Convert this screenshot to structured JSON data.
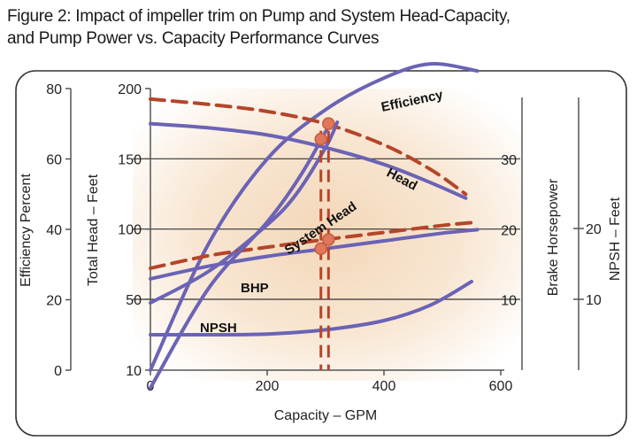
{
  "figure": {
    "title_line1": "Figure 2: Impact of impeller trim on Pump and System Head-Capacity,",
    "title_line2": "and Pump Power vs. Capacity Performance Curves"
  },
  "chart_data": {
    "type": "line",
    "xlabel": "Capacity – GPM",
    "xlim": [
      0,
      600
    ],
    "x_ticks": [
      "0",
      "200",
      "400",
      "600"
    ],
    "axes": {
      "efficiency": {
        "label": "Efficiency Percent",
        "ticks": [
          "80",
          "60",
          "40",
          "20",
          "0"
        ]
      },
      "head": {
        "label": "Total Head – Feet",
        "ticks": [
          "200",
          "150",
          "100",
          "50",
          "10"
        ]
      },
      "bhp": {
        "label": "Brake Horsepower",
        "ticks": [
          "30",
          "20",
          "10"
        ]
      },
      "npsh": {
        "label": "NPSH – Feet",
        "ticks": [
          "20",
          "10"
        ]
      }
    },
    "grid": "horizontal",
    "series": [
      {
        "name": "Efficiency",
        "style": "solid",
        "color": "#6b63b5",
        "points": [
          [
            0,
            0
          ],
          [
            100,
            36
          ],
          [
            200,
            60
          ],
          [
            300,
            74
          ],
          [
            400,
            83
          ],
          [
            480,
            87
          ],
          [
            560,
            85
          ]
        ]
      },
      {
        "name": "Efficiency",
        "style": "dashed",
        "color": "#b5452a",
        "points": [
          [
            0,
            77
          ],
          [
            100,
            75.5
          ],
          [
            200,
            73.5
          ],
          [
            300,
            70
          ],
          [
            400,
            64
          ],
          [
            480,
            57
          ],
          [
            540,
            50
          ]
        ]
      },
      {
        "name": "Head",
        "style": "solid",
        "color": "#6b63b5",
        "points": [
          [
            0,
            175
          ],
          [
            100,
            172
          ],
          [
            200,
            167
          ],
          [
            300,
            158
          ],
          [
            400,
            146
          ],
          [
            480,
            133
          ],
          [
            540,
            122
          ]
        ]
      },
      {
        "name": "System Head",
        "style": "solid",
        "color": "#6b63b5",
        "points": [
          [
            0,
            48
          ],
          [
            100,
            70
          ],
          [
            200,
            103
          ],
          [
            250,
            125
          ],
          [
            300,
            158
          ],
          [
            320,
            176
          ]
        ]
      },
      {
        "name": "BHP",
        "style": "solid",
        "color": "#6b63b5",
        "points": [
          [
            0,
            13
          ],
          [
            100,
            14.8
          ],
          [
            200,
            16.2
          ],
          [
            300,
            17.3
          ],
          [
            400,
            18.4
          ],
          [
            500,
            19.5
          ],
          [
            560,
            20
          ]
        ]
      },
      {
        "name": "BHP",
        "style": "dashed",
        "color": "#b5452a",
        "points": [
          [
            0,
            14.5
          ],
          [
            100,
            16.3
          ],
          [
            200,
            17.5
          ],
          [
            300,
            18.6
          ],
          [
            400,
            19.6
          ],
          [
            500,
            20.6
          ],
          [
            550,
            21
          ]
        ]
      },
      {
        "name": "NPSH",
        "style": "solid",
        "color": "#6b63b5",
        "points": [
          [
            0,
            5
          ],
          [
            100,
            5
          ],
          [
            200,
            5.1
          ],
          [
            300,
            5.7
          ],
          [
            400,
            7
          ],
          [
            480,
            9.2
          ],
          [
            550,
            12.5
          ]
        ]
      },
      {
        "name": "System Head",
        "style": "solid",
        "color": "#6b63b5",
        "points": [
          [
            0,
            0
          ],
          [
            100,
            58
          ],
          [
            200,
            105
          ],
          [
            260,
            140
          ],
          [
            310,
            177
          ]
        ]
      }
    ],
    "operating_points": [
      {
        "x": 292,
        "style": "dashed"
      },
      {
        "x": 305,
        "style": "dashed"
      }
    ],
    "annotations": [
      "Efficiency",
      "Head",
      "System Head",
      "BHP",
      "NPSH"
    ]
  }
}
